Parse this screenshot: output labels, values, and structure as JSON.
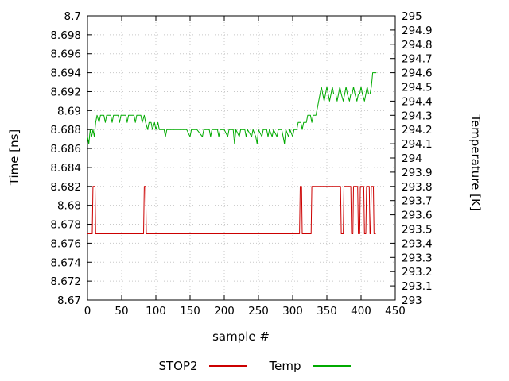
{
  "chart_data": {
    "type": "line",
    "title": "",
    "xlabel": "sample #",
    "ylabel_left": "Time [ns]",
    "ylabel_right": "Temperature [K]",
    "grid": true,
    "legend_position": "bottom-center",
    "x_axis": {
      "min": 0,
      "max": 450,
      "step": 50
    },
    "left_axis": {
      "min": 8.67,
      "max": 8.7,
      "step": 0.002
    },
    "right_axis": {
      "min": 293,
      "max": 295,
      "step": 0.1
    },
    "series": [
      {
        "name": "STOP2",
        "color": "#cc0000",
        "axis": "left",
        "points": [
          [
            0,
            8.677
          ],
          [
            7,
            8.677
          ],
          [
            8,
            8.682
          ],
          [
            11,
            8.682
          ],
          [
            12,
            8.677
          ],
          [
            82,
            8.677
          ],
          [
            83,
            8.682
          ],
          [
            85,
            8.682
          ],
          [
            86,
            8.677
          ],
          [
            310,
            8.677
          ],
          [
            311,
            8.682
          ],
          [
            313,
            8.682
          ],
          [
            314,
            8.677
          ],
          [
            327,
            8.677
          ],
          [
            328,
            8.682
          ],
          [
            370,
            8.682
          ],
          [
            371,
            8.677
          ],
          [
            374,
            8.677
          ],
          [
            375,
            8.682
          ],
          [
            385,
            8.682
          ],
          [
            386,
            8.677
          ],
          [
            388,
            8.677
          ],
          [
            389,
            8.682
          ],
          [
            395,
            8.682
          ],
          [
            396,
            8.677
          ],
          [
            398,
            8.677
          ],
          [
            399,
            8.682
          ],
          [
            404,
            8.682
          ],
          [
            405,
            8.677
          ],
          [
            407,
            8.677
          ],
          [
            408,
            8.682
          ],
          [
            412,
            8.682
          ],
          [
            413,
            8.677
          ],
          [
            414,
            8.677
          ],
          [
            415,
            8.682
          ],
          [
            418,
            8.682
          ],
          [
            419,
            8.677
          ],
          [
            421,
            8.677
          ]
        ]
      },
      {
        "name": "Temp",
        "color": "#00aa00",
        "axis": "right",
        "points": [
          [
            0,
            294.15
          ],
          [
            2,
            294.1
          ],
          [
            4,
            294.2
          ],
          [
            6,
            294.15
          ],
          [
            8,
            294.2
          ],
          [
            10,
            294.15
          ],
          [
            12,
            294.25
          ],
          [
            14,
            294.3
          ],
          [
            17,
            294.25
          ],
          [
            19,
            294.3
          ],
          [
            24,
            294.3
          ],
          [
            26,
            294.25
          ],
          [
            28,
            294.3
          ],
          [
            34,
            294.3
          ],
          [
            36,
            294.25
          ],
          [
            38,
            294.3
          ],
          [
            45,
            294.3
          ],
          [
            47,
            294.25
          ],
          [
            49,
            294.3
          ],
          [
            56,
            294.3
          ],
          [
            58,
            294.25
          ],
          [
            60,
            294.3
          ],
          [
            68,
            294.3
          ],
          [
            70,
            294.25
          ],
          [
            72,
            294.3
          ],
          [
            78,
            294.3
          ],
          [
            80,
            294.25
          ],
          [
            83,
            294.3
          ],
          [
            85,
            294.25
          ],
          [
            88,
            294.2
          ],
          [
            90,
            294.25
          ],
          [
            93,
            294.25
          ],
          [
            95,
            294.2
          ],
          [
            98,
            294.25
          ],
          [
            100,
            294.2
          ],
          [
            103,
            294.25
          ],
          [
            105,
            294.2
          ],
          [
            112,
            294.2
          ],
          [
            114,
            294.15
          ],
          [
            116,
            294.2
          ],
          [
            125,
            294.2
          ],
          [
            135,
            294.2
          ],
          [
            145,
            294.2
          ],
          [
            150,
            294.15
          ],
          [
            152,
            294.2
          ],
          [
            160,
            294.2
          ],
          [
            168,
            294.15
          ],
          [
            170,
            294.2
          ],
          [
            178,
            294.2
          ],
          [
            180,
            294.15
          ],
          [
            182,
            294.2
          ],
          [
            190,
            294.2
          ],
          [
            192,
            294.15
          ],
          [
            194,
            294.2
          ],
          [
            200,
            294.2
          ],
          [
            205,
            294.15
          ],
          [
            207,
            294.2
          ],
          [
            213,
            294.2
          ],
          [
            215,
            294.1
          ],
          [
            217,
            294.2
          ],
          [
            222,
            294.15
          ],
          [
            224,
            294.2
          ],
          [
            230,
            294.2
          ],
          [
            232,
            294.15
          ],
          [
            234,
            294.2
          ],
          [
            240,
            294.15
          ],
          [
            242,
            294.2
          ],
          [
            246,
            294.15
          ],
          [
            248,
            294.1
          ],
          [
            250,
            294.2
          ],
          [
            255,
            294.15
          ],
          [
            257,
            294.2
          ],
          [
            262,
            294.2
          ],
          [
            264,
            294.15
          ],
          [
            266,
            294.2
          ],
          [
            270,
            294.15
          ],
          [
            272,
            294.2
          ],
          [
            277,
            294.15
          ],
          [
            279,
            294.2
          ],
          [
            284,
            294.2
          ],
          [
            286,
            294.15
          ],
          [
            288,
            294.1
          ],
          [
            290,
            294.2
          ],
          [
            294,
            294.15
          ],
          [
            296,
            294.2
          ],
          [
            300,
            294.15
          ],
          [
            302,
            294.2
          ],
          [
            306,
            294.2
          ],
          [
            308,
            294.25
          ],
          [
            312,
            294.25
          ],
          [
            314,
            294.2
          ],
          [
            316,
            294.25
          ],
          [
            320,
            294.25
          ],
          [
            322,
            294.3
          ],
          [
            326,
            294.3
          ],
          [
            328,
            294.25
          ],
          [
            330,
            294.3
          ],
          [
            334,
            294.3
          ],
          [
            336,
            294.35
          ],
          [
            338,
            294.4
          ],
          [
            340,
            294.45
          ],
          [
            342,
            294.5
          ],
          [
            344,
            294.45
          ],
          [
            346,
            294.4
          ],
          [
            348,
            294.45
          ],
          [
            350,
            294.5
          ],
          [
            352,
            294.45
          ],
          [
            354,
            294.4
          ],
          [
            356,
            294.45
          ],
          [
            358,
            294.5
          ],
          [
            360,
            294.45
          ],
          [
            363,
            294.45
          ],
          [
            365,
            294.4
          ],
          [
            367,
            294.45
          ],
          [
            369,
            294.5
          ],
          [
            371,
            294.45
          ],
          [
            374,
            294.4
          ],
          [
            376,
            294.45
          ],
          [
            378,
            294.5
          ],
          [
            380,
            294.45
          ],
          [
            383,
            294.4
          ],
          [
            385,
            294.45
          ],
          [
            387,
            294.45
          ],
          [
            389,
            294.5
          ],
          [
            391,
            294.45
          ],
          [
            394,
            294.4
          ],
          [
            396,
            294.45
          ],
          [
            398,
            294.45
          ],
          [
            400,
            294.5
          ],
          [
            402,
            294.45
          ],
          [
            405,
            294.4
          ],
          [
            407,
            294.45
          ],
          [
            409,
            294.5
          ],
          [
            411,
            294.45
          ],
          [
            413,
            294.45
          ],
          [
            415,
            294.5
          ],
          [
            416,
            294.55
          ],
          [
            417,
            294.6
          ],
          [
            420,
            294.6
          ],
          [
            422,
            294.6
          ]
        ]
      }
    ]
  }
}
